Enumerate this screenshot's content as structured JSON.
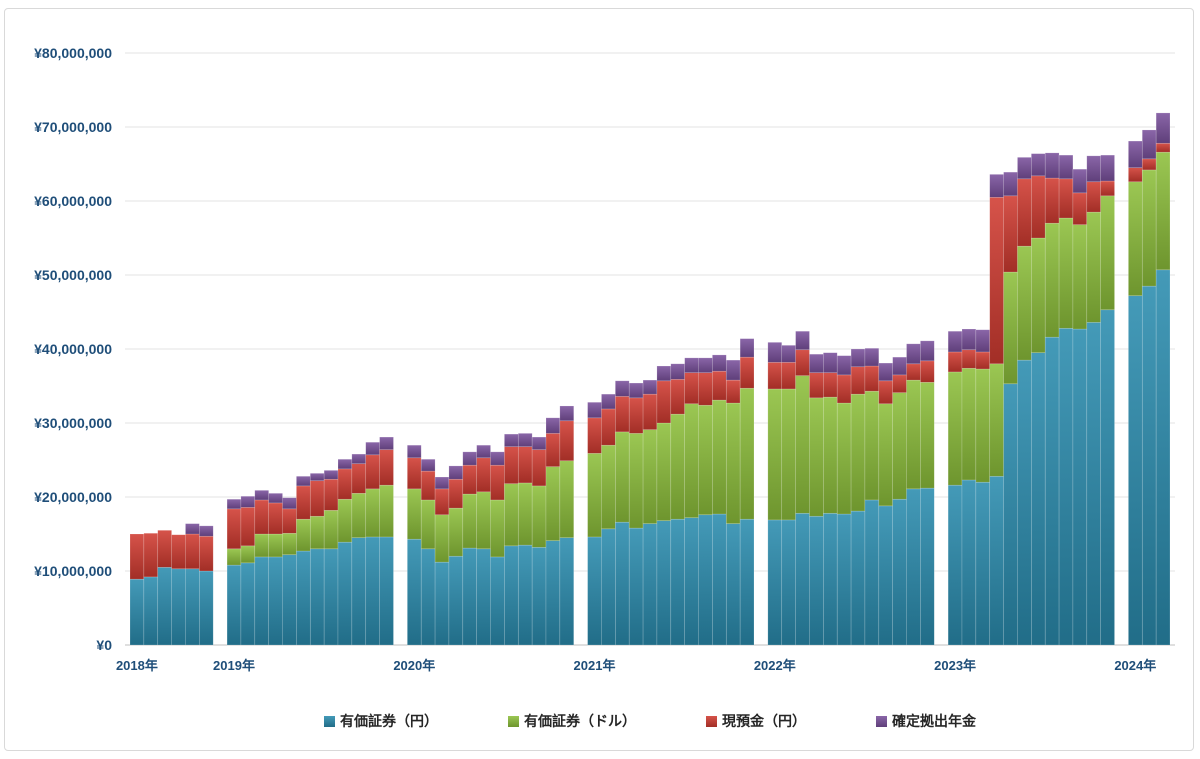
{
  "chart_data": {
    "type": "bar",
    "stacked": true,
    "grid": true,
    "legend": "bottom",
    "ylim": [
      0,
      80000000
    ],
    "y_ticks": [
      0,
      10000000,
      20000000,
      30000000,
      40000000,
      50000000,
      60000000,
      70000000,
      80000000
    ],
    "y_tick_labels": [
      "¥0",
      "¥10,000,000",
      "¥20,000,000",
      "¥30,000,000",
      "¥40,000,000",
      "¥50,000,000",
      "¥60,000,000",
      "¥70,000,000",
      "¥80,000,000"
    ],
    "categories": [
      "2018年",
      "2019年",
      "2020年",
      "2021年",
      "2022年",
      "2023年",
      "2024年"
    ],
    "series": [
      {
        "name": "有価証券（円）",
        "color": "#2a8cae",
        "values": [
          [
            8900000,
            9200000,
            10500000,
            10300000,
            10300000,
            10000000
          ],
          [
            10800000,
            11100000,
            11900000,
            11900000,
            12200000,
            12700000,
            13000000,
            13000000,
            13900000,
            14500000,
            14600000,
            14600000
          ],
          [
            14300000,
            13000000,
            11200000,
            12000000,
            13100000,
            13000000,
            11900000,
            13400000,
            13500000,
            13200000,
            14100000,
            14500000
          ],
          [
            14600000,
            15700000,
            16600000,
            15800000,
            16400000,
            16800000,
            17000000,
            17200000,
            17600000,
            17700000,
            16400000,
            17000000
          ],
          [
            16900000,
            16900000,
            17800000,
            17400000,
            17800000,
            17700000,
            18100000,
            19600000,
            18800000,
            19700000,
            21100000,
            21200000
          ],
          [
            21600000,
            22300000,
            22000000,
            22800000,
            35300000,
            38500000,
            39500000,
            41600000,
            42800000,
            42700000,
            43600000,
            45300000
          ],
          [
            47200000,
            48500000,
            50700000
          ]
        ]
      },
      {
        "name": "有価証券（ドル）",
        "color": "#8dbf3b",
        "values": [
          [
            0,
            0,
            0,
            0,
            0,
            0
          ],
          [
            2200000,
            2300000,
            3100000,
            3100000,
            2900000,
            4300000,
            4400000,
            5200000,
            5800000,
            6000000,
            6500000,
            7000000
          ],
          [
            6800000,
            6600000,
            6400000,
            6500000,
            7300000,
            7700000,
            7700000,
            8400000,
            8400000,
            8300000,
            10000000,
            10400000
          ],
          [
            11300000,
            11300000,
            12200000,
            12800000,
            12700000,
            13200000,
            14200000,
            15400000,
            14800000,
            15400000,
            16300000,
            17700000
          ],
          [
            17700000,
            17700000,
            18600000,
            16000000,
            15700000,
            15000000,
            15800000,
            14700000,
            13800000,
            14400000,
            14700000,
            14300000
          ],
          [
            15300000,
            15100000,
            15300000,
            15200000,
            15100000,
            15400000,
            15500000,
            15400000,
            14900000,
            14100000,
            14900000,
            15400000
          ],
          [
            15400000,
            15700000,
            15900000
          ]
        ]
      },
      {
        "name": "現預金（円）",
        "color": "#d03b31",
        "values": [
          [
            6100000,
            5900000,
            5000000,
            4600000,
            4700000,
            4700000
          ],
          [
            5400000,
            5200000,
            4600000,
            4200000,
            3300000,
            4500000,
            4800000,
            4200000,
            4100000,
            4000000,
            4600000,
            4800000
          ],
          [
            4200000,
            3900000,
            3500000,
            3900000,
            3900000,
            4600000,
            4700000,
            5000000,
            4900000,
            4900000,
            4500000,
            5400000
          ],
          [
            4800000,
            4900000,
            4800000,
            4800000,
            4800000,
            5700000,
            4700000,
            4200000,
            4400000,
            3900000,
            3100000,
            4200000
          ],
          [
            3600000,
            3600000,
            3500000,
            3400000,
            3300000,
            3800000,
            3700000,
            3400000,
            3100000,
            2400000,
            2200000,
            2900000
          ],
          [
            2700000,
            2500000,
            2300000,
            22500000,
            10300000,
            9100000,
            8400000,
            6100000,
            5300000,
            4300000,
            4100000,
            2000000
          ],
          [
            1900000,
            1500000,
            1200000
          ]
        ]
      },
      {
        "name": "確定拠出年金",
        "color": "#7a519c",
        "values": [
          [
            0,
            0,
            0,
            0,
            1400000,
            1400000
          ],
          [
            1300000,
            1500000,
            1300000,
            1300000,
            1500000,
            1300000,
            1000000,
            1200000,
            1300000,
            1300000,
            1700000,
            1700000
          ],
          [
            1700000,
            1600000,
            1600000,
            1800000,
            1800000,
            1700000,
            1800000,
            1700000,
            1800000,
            1700000,
            2100000,
            2000000
          ],
          [
            2100000,
            2000000,
            2100000,
            2000000,
            1900000,
            2000000,
            2100000,
            2000000,
            2000000,
            2200000,
            2700000,
            2500000
          ],
          [
            2700000,
            2300000,
            2500000,
            2500000,
            2700000,
            2600000,
            2400000,
            2400000,
            2400000,
            2400000,
            2700000,
            2700000
          ],
          [
            2800000,
            2800000,
            3000000,
            3100000,
            3200000,
            2900000,
            3000000,
            3400000,
            3200000,
            3200000,
            3500000,
            3500000
          ],
          [
            3600000,
            3900000,
            4100000
          ]
        ]
      }
    ]
  }
}
